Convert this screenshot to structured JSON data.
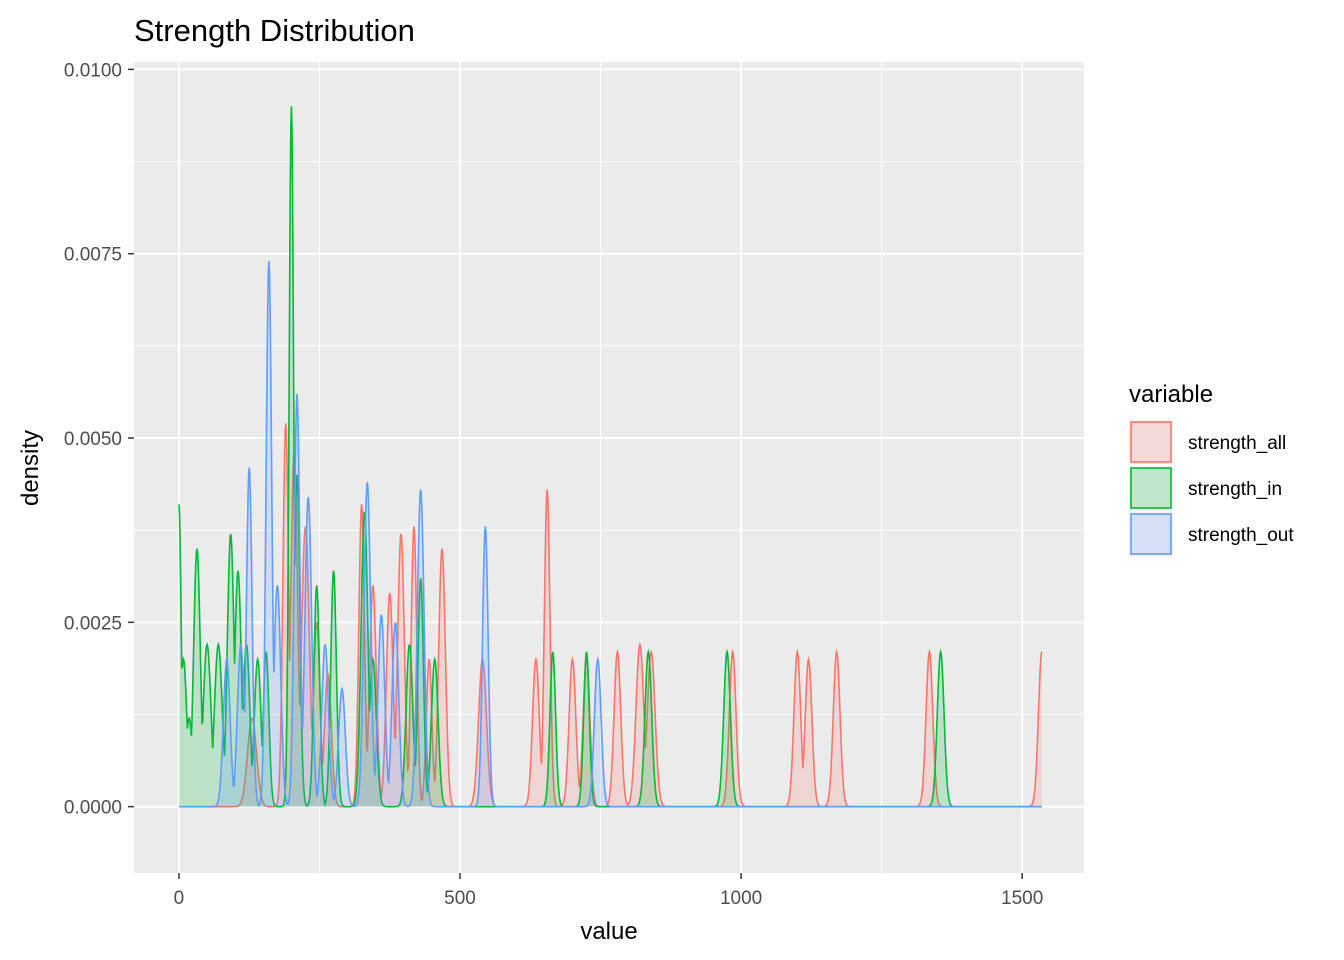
{
  "chart_data": {
    "type": "area",
    "title": "Strength Distribution",
    "xlabel": "value",
    "ylabel": "density",
    "xlim": [
      -80,
      1610
    ],
    "ylim": [
      -0.0009,
      0.0101
    ],
    "x_ticks": [
      0,
      500,
      1000,
      1500
    ],
    "x_tick_labels": [
      "0",
      "500",
      "1000",
      "1500"
    ],
    "y_ticks": [
      0,
      0.0025,
      0.005,
      0.0075,
      0.01
    ],
    "y_tick_labels": [
      "0.0000",
      "0.0025",
      "0.0050",
      "0.0075",
      "0.0100"
    ],
    "grid": true,
    "legend": {
      "title": "variable",
      "position": "right"
    },
    "series": [
      {
        "name": "strength_all",
        "color": "#F8766D",
        "fill": "#F8766D",
        "fill_opacity": 0.2,
        "range": [
          0,
          1535
        ],
        "peaks": [
          [
            130,
            0.0012,
            8
          ],
          [
            190,
            0.0052,
            5
          ],
          [
            205,
            0.0048,
            6
          ],
          [
            225,
            0.0038,
            7
          ],
          [
            245,
            0.0025,
            6
          ],
          [
            265,
            0.0018,
            6
          ],
          [
            325,
            0.0041,
            5
          ],
          [
            345,
            0.003,
            6
          ],
          [
            375,
            0.0029,
            6
          ],
          [
            395,
            0.0037,
            6
          ],
          [
            418,
            0.0038,
            5
          ],
          [
            445,
            0.002,
            5
          ],
          [
            468,
            0.0035,
            6
          ],
          [
            540,
            0.002,
            7
          ],
          [
            635,
            0.002,
            6
          ],
          [
            655,
            0.0043,
            5
          ],
          [
            700,
            0.002,
            6
          ],
          [
            725,
            0.002,
            6
          ],
          [
            780,
            0.0021,
            6
          ],
          [
            820,
            0.0022,
            7
          ],
          [
            840,
            0.0021,
            7
          ],
          [
            985,
            0.0021,
            6
          ],
          [
            1100,
            0.0021,
            6
          ],
          [
            1120,
            0.002,
            6
          ],
          [
            1170,
            0.0021,
            6
          ],
          [
            1335,
            0.0021,
            6
          ],
          [
            1535,
            0.0021,
            6
          ]
        ]
      },
      {
        "name": "strength_in",
        "color": "#00BA38",
        "fill": "#00BA38",
        "fill_opacity": 0.2,
        "range": [
          0,
          1535
        ],
        "peaks": [
          [
            0,
            0.0041,
            4
          ],
          [
            8,
            0.002,
            6
          ],
          [
            18,
            0.0012,
            6
          ],
          [
            32,
            0.0035,
            6
          ],
          [
            50,
            0.0022,
            7
          ],
          [
            70,
            0.0022,
            7
          ],
          [
            92,
            0.0037,
            6
          ],
          [
            105,
            0.0032,
            6
          ],
          [
            120,
            0.0022,
            6
          ],
          [
            140,
            0.002,
            6
          ],
          [
            155,
            0.0021,
            5
          ],
          [
            200,
            0.0095,
            4
          ],
          [
            210,
            0.0045,
            5
          ],
          [
            245,
            0.003,
            5
          ],
          [
            275,
            0.0032,
            5
          ],
          [
            330,
            0.004,
            6
          ],
          [
            345,
            0.002,
            6
          ],
          [
            410,
            0.0022,
            6
          ],
          [
            430,
            0.0031,
            5
          ],
          [
            455,
            0.002,
            6
          ],
          [
            665,
            0.0021,
            5
          ],
          [
            725,
            0.0021,
            5
          ],
          [
            835,
            0.0021,
            6
          ],
          [
            975,
            0.0021,
            6
          ],
          [
            1355,
            0.0021,
            6
          ]
        ]
      },
      {
        "name": "strength_out",
        "color": "#619CFF",
        "fill": "#619CFF",
        "fill_opacity": 0.2,
        "range": [
          0,
          1535
        ],
        "peaks": [
          [
            85,
            0.002,
            6
          ],
          [
            110,
            0.0022,
            6
          ],
          [
            125,
            0.0046,
            5
          ],
          [
            160,
            0.0074,
            5
          ],
          [
            175,
            0.003,
            6
          ],
          [
            210,
            0.0056,
            5
          ],
          [
            230,
            0.0042,
            6
          ],
          [
            260,
            0.0022,
            6
          ],
          [
            290,
            0.0016,
            6
          ],
          [
            335,
            0.0044,
            6
          ],
          [
            360,
            0.0026,
            6
          ],
          [
            385,
            0.0025,
            6
          ],
          [
            430,
            0.0043,
            6
          ],
          [
            545,
            0.0038,
            5
          ],
          [
            745,
            0.002,
            6
          ]
        ]
      }
    ]
  }
}
